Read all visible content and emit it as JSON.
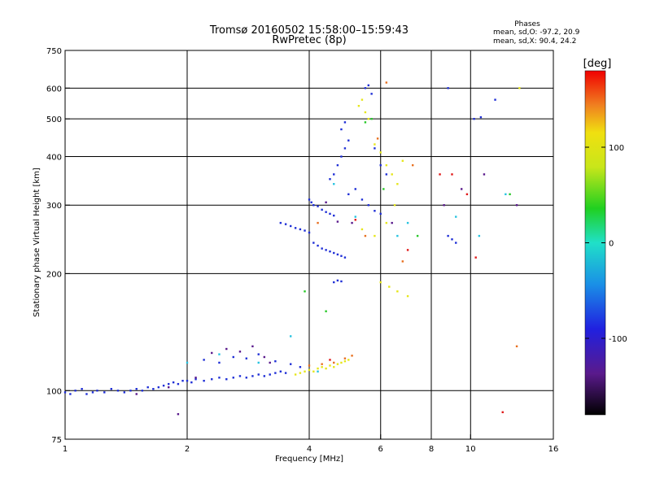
{
  "title": "Tromsø 20160502 15:58:00–15:59:43",
  "subtitle": "RwPretec (8p)",
  "stats": {
    "heading": "Phases",
    "line_o": "mean, sd,O: -97.2, 20.9",
    "line_x": "mean, sd,X:  90.4, 24.2"
  },
  "chart_data": {
    "type": "scatter",
    "xlabel": "Frequency [MHz]",
    "ylabel": "Stationary phase Virtual Height [km]",
    "xscale": "log",
    "yscale": "log",
    "xlim": [
      1,
      16
    ],
    "ylim": [
      75,
      750
    ],
    "x_ticks": [
      1,
      2,
      4,
      6,
      8,
      10,
      16
    ],
    "x_tick_labels": [
      "1",
      "2",
      "4",
      "6",
      "8",
      "10",
      "16"
    ],
    "x_grid": [
      2,
      4,
      6,
      8,
      10
    ],
    "y_ticks": [
      75,
      100,
      200,
      300,
      400,
      500,
      600,
      750
    ],
    "y_tick_labels": [
      "75",
      "100",
      "200",
      "300",
      "400",
      "500",
      "600",
      "750"
    ],
    "y_grid": [
      100,
      200,
      300,
      400,
      500,
      600
    ],
    "grid": true,
    "colorbar": {
      "label": "[deg]",
      "range": [
        -180,
        180
      ],
      "ticks": [
        -100,
        0,
        100
      ],
      "tick_labels": [
        "-100",
        "0",
        "100"
      ],
      "colormap": "rainbow (black-purple-blue-cyan-green-yellow-red)"
    },
    "series": [
      {
        "color": "#1f2fd6",
        "points": [
          [
            1.0,
            99
          ],
          [
            1.03,
            98
          ],
          [
            1.06,
            100
          ],
          [
            1.1,
            101
          ],
          [
            1.13,
            98
          ],
          [
            1.17,
            99
          ],
          [
            1.2,
            100
          ],
          [
            1.25,
            99
          ],
          [
            1.3,
            101
          ],
          [
            1.35,
            100
          ],
          [
            1.4,
            99
          ],
          [
            1.45,
            100
          ],
          [
            1.5,
            101
          ],
          [
            1.55,
            100
          ],
          [
            1.6,
            102
          ],
          [
            1.65,
            101
          ],
          [
            1.7,
            102
          ],
          [
            1.75,
            103
          ],
          [
            1.8,
            104
          ],
          [
            1.85,
            105
          ],
          [
            1.9,
            104
          ],
          [
            1.95,
            106
          ],
          [
            2.0,
            106
          ],
          [
            2.05,
            105
          ],
          [
            2.1,
            107
          ],
          [
            2.2,
            106
          ],
          [
            2.3,
            107
          ],
          [
            2.4,
            108
          ],
          [
            2.5,
            107
          ],
          [
            2.6,
            108
          ],
          [
            2.7,
            109
          ],
          [
            2.8,
            108
          ],
          [
            2.9,
            109
          ],
          [
            3.0,
            110
          ],
          [
            3.1,
            109
          ],
          [
            3.2,
            110
          ],
          [
            3.3,
            111
          ],
          [
            3.4,
            112
          ],
          [
            3.5,
            111
          ],
          [
            2.2,
            120
          ],
          [
            2.4,
            118
          ],
          [
            2.6,
            122
          ],
          [
            2.8,
            121
          ],
          [
            3.0,
            124
          ],
          [
            3.3,
            119
          ],
          [
            3.6,
            117
          ],
          [
            3.8,
            115
          ],
          [
            3.4,
            270
          ],
          [
            3.5,
            268
          ],
          [
            3.6,
            265
          ],
          [
            3.7,
            262
          ],
          [
            3.8,
            260
          ],
          [
            3.9,
            258
          ],
          [
            4.0,
            255
          ],
          [
            4.0,
            310
          ],
          [
            4.05,
            305
          ],
          [
            4.1,
            300
          ],
          [
            4.2,
            298
          ],
          [
            4.3,
            292
          ],
          [
            4.4,
            288
          ],
          [
            4.5,
            285
          ],
          [
            4.6,
            282
          ],
          [
            4.1,
            240
          ],
          [
            4.2,
            236
          ],
          [
            4.3,
            232
          ],
          [
            4.4,
            230
          ],
          [
            4.5,
            228
          ],
          [
            4.6,
            226
          ],
          [
            4.7,
            224
          ],
          [
            4.8,
            222
          ],
          [
            4.9,
            220
          ],
          [
            4.6,
            190
          ],
          [
            4.7,
            192
          ],
          [
            4.8,
            191
          ],
          [
            4.5,
            350
          ],
          [
            4.6,
            360
          ],
          [
            4.7,
            380
          ],
          [
            4.8,
            400
          ],
          [
            4.9,
            420
          ],
          [
            5.0,
            440
          ],
          [
            4.8,
            470
          ],
          [
            4.9,
            490
          ],
          [
            5.5,
            600
          ],
          [
            5.6,
            610
          ],
          [
            5.7,
            580
          ],
          [
            5.0,
            320
          ],
          [
            5.2,
            330
          ],
          [
            5.4,
            310
          ],
          [
            5.6,
            300
          ],
          [
            5.8,
            290
          ],
          [
            6.0,
            285
          ],
          [
            5.8,
            420
          ],
          [
            6.0,
            380
          ],
          [
            6.2,
            360
          ],
          [
            8.8,
            250
          ],
          [
            9.0,
            245
          ],
          [
            9.2,
            240
          ],
          [
            10.2,
            500
          ],
          [
            10.6,
            505
          ],
          [
            8.8,
            600
          ],
          [
            11.5,
            560
          ]
        ]
      },
      {
        "color": "#5a1a8c",
        "points": [
          [
            1.5,
            98
          ],
          [
            1.8,
            102
          ],
          [
            2.1,
            108
          ],
          [
            2.3,
            125
          ],
          [
            2.5,
            128
          ],
          [
            2.7,
            126
          ],
          [
            2.9,
            130
          ],
          [
            3.1,
            122
          ],
          [
            3.2,
            118
          ],
          [
            4.4,
            305
          ],
          [
            4.7,
            272
          ],
          [
            5.1,
            270
          ],
          [
            6.4,
            270
          ],
          [
            8.6,
            300
          ],
          [
            9.5,
            330
          ],
          [
            10.8,
            360
          ],
          [
            13.0,
            300
          ],
          [
            1.9,
            87
          ]
        ]
      },
      {
        "color": "#27c3e0",
        "points": [
          [
            2.0,
            118
          ],
          [
            2.4,
            124
          ],
          [
            3.0,
            118
          ],
          [
            3.6,
            138
          ],
          [
            4.2,
            112
          ],
          [
            4.6,
            340
          ],
          [
            5.2,
            280
          ],
          [
            6.6,
            250
          ],
          [
            7.0,
            270
          ],
          [
            9.2,
            280
          ],
          [
            10.5,
            250
          ],
          [
            12.2,
            320
          ]
        ]
      },
      {
        "color": "#e6e61a",
        "points": [
          [
            3.7,
            110
          ],
          [
            3.8,
            111
          ],
          [
            3.9,
            112
          ],
          [
            4.0,
            113
          ],
          [
            4.1,
            112
          ],
          [
            4.2,
            114
          ],
          [
            4.3,
            115
          ],
          [
            4.4,
            114
          ],
          [
            4.5,
            116
          ],
          [
            4.6,
            115
          ],
          [
            4.7,
            117
          ],
          [
            4.8,
            118
          ],
          [
            4.9,
            119
          ],
          [
            5.0,
            120
          ],
          [
            5.3,
            540
          ],
          [
            5.4,
            560
          ],
          [
            5.5,
            520
          ],
          [
            5.6,
            500
          ],
          [
            5.8,
            430
          ],
          [
            6.0,
            410
          ],
          [
            6.2,
            380
          ],
          [
            6.4,
            360
          ],
          [
            6.6,
            340
          ],
          [
            6.8,
            390
          ],
          [
            6.5,
            300
          ],
          [
            6.2,
            270
          ],
          [
            6.0,
            190
          ],
          [
            6.3,
            185
          ],
          [
            6.6,
            180
          ],
          [
            7.0,
            175
          ],
          [
            5.4,
            260
          ],
          [
            5.8,
            250
          ],
          [
            13.2,
            600
          ]
        ]
      },
      {
        "color": "#e87020",
        "points": [
          [
            4.0,
            116
          ],
          [
            4.3,
            117
          ],
          [
            4.6,
            118
          ],
          [
            4.9,
            121
          ],
          [
            5.1,
            123
          ],
          [
            4.2,
            270
          ],
          [
            5.5,
            250
          ],
          [
            6.2,
            620
          ],
          [
            5.9,
            445
          ],
          [
            6.8,
            215
          ],
          [
            7.2,
            380
          ],
          [
            13.0,
            130
          ]
        ]
      },
      {
        "color": "#e01818",
        "points": [
          [
            4.5,
            120
          ],
          [
            5.2,
            275
          ],
          [
            7.0,
            230
          ],
          [
            8.4,
            360
          ],
          [
            9.0,
            360
          ],
          [
            12.0,
            88
          ],
          [
            9.8,
            320
          ],
          [
            10.3,
            220
          ]
        ]
      },
      {
        "color": "#28c828",
        "points": [
          [
            3.9,
            180
          ],
          [
            4.4,
            160
          ],
          [
            5.5,
            490
          ],
          [
            5.7,
            500
          ],
          [
            6.1,
            330
          ],
          [
            7.4,
            250
          ],
          [
            12.5,
            320
          ]
        ]
      }
    ]
  }
}
